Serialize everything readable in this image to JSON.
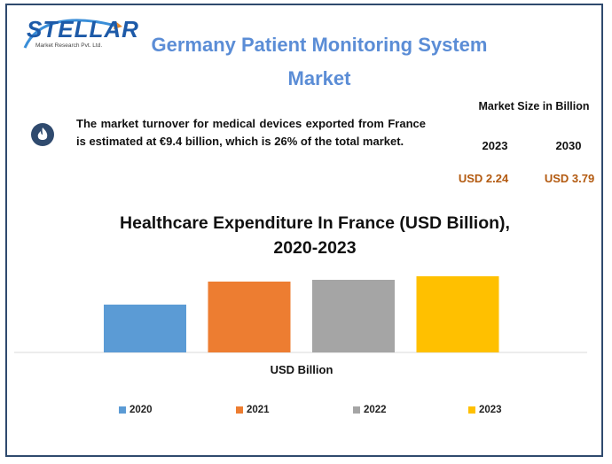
{
  "brand": {
    "name": "STELLAR",
    "tagline": "Market Research Pvt. Ltd."
  },
  "title_line1": "Germany Patient Monitoring System",
  "title_line2": "Market",
  "info": {
    "icon": "flame-icon",
    "text": "The market turnover for medical devices exported from France is estimated at €9.4 billion, which is 26% of the total market."
  },
  "market_size": {
    "heading": "Market Size in Billion",
    "years": [
      "2023",
      "2030"
    ],
    "values": [
      "USD 2.24",
      "USD 3.79"
    ]
  },
  "chart_data": {
    "type": "bar",
    "title": "Healthcare Expenditure In France (USD Billion), 2020-2023",
    "title_line1": "Healthcare Expenditure In France (USD Billion),",
    "title_line2": "2020-2023",
    "xlabel": "USD Billion",
    "ylabel": "",
    "categories": [
      "2020",
      "2021",
      "2022",
      "2023"
    ],
    "values": [
      2.7,
      4.0,
      4.1,
      4.3
    ],
    "ylim": [
      0,
      5
    ],
    "colors": [
      "#5b9bd5",
      "#ed7d31",
      "#a5a5a5",
      "#ffc000"
    ],
    "legend_position": "bottom",
    "grid": false
  }
}
